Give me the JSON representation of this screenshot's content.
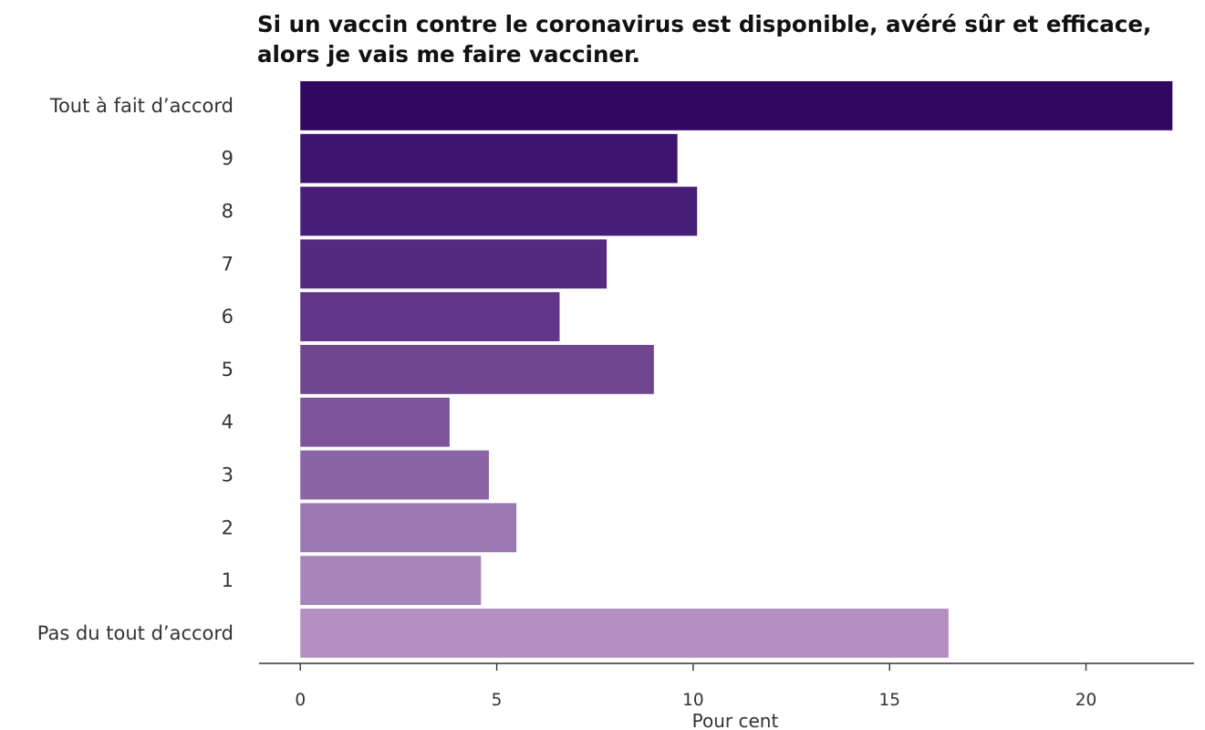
{
  "chart_data": {
    "type": "bar",
    "orientation": "horizontal",
    "title": "Si un vaccin contre le coronavirus est disponible, avéré sûr et efficace, alors je vais me faire vacciner.",
    "xlabel": "Pour cent",
    "ylabel": "",
    "categories": [
      "Tout à fait d’accord",
      "9",
      "8",
      "7",
      "6",
      "5",
      "4",
      "3",
      "2",
      "1",
      "Pas du tout d’accord"
    ],
    "values": [
      22.2,
      9.6,
      10.1,
      7.8,
      6.6,
      9.0,
      3.8,
      4.8,
      5.5,
      4.6,
      16.5
    ],
    "colors": [
      "#330862",
      "#3d1470",
      "#481f78",
      "#542a7e",
      "#623787",
      "#714690",
      "#7d5499",
      "#8b65a6",
      "#9b78b2",
      "#a785bb",
      "#b58fc1"
    ],
    "xlim": [
      -1.05,
      22.75
    ],
    "xticks": [
      0,
      5,
      10,
      15,
      20
    ],
    "grid": false,
    "legend": "none"
  }
}
